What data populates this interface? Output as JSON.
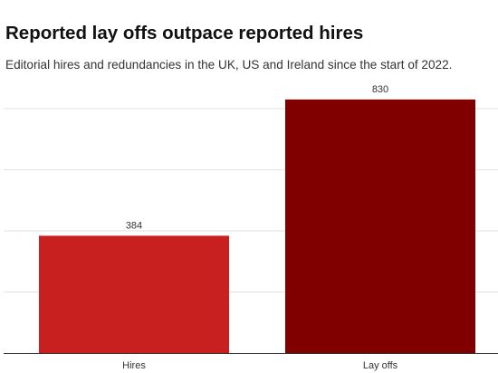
{
  "title": "Reported lay offs outpace reported hires",
  "subtitle": "Editorial hires and redundancies in the UK, US and Ireland since the start of 2022.",
  "chart_data": {
    "type": "bar",
    "title": "Reported lay offs outpace reported hires",
    "subtitle": "Editorial hires and redundancies in the UK, US and Ireland since the start of 2022.",
    "categories": [
      "Hires",
      "Lay offs"
    ],
    "values": [
      384,
      830
    ],
    "data_labels": [
      "384",
      "830"
    ],
    "colors": [
      "#c8201e",
      "#800000"
    ],
    "ylim": [
      0,
      800
    ],
    "gridlines": [
      0,
      200,
      400,
      600,
      800
    ],
    "grid": true,
    "legend": "none",
    "xlabel": "",
    "ylabel": ""
  }
}
